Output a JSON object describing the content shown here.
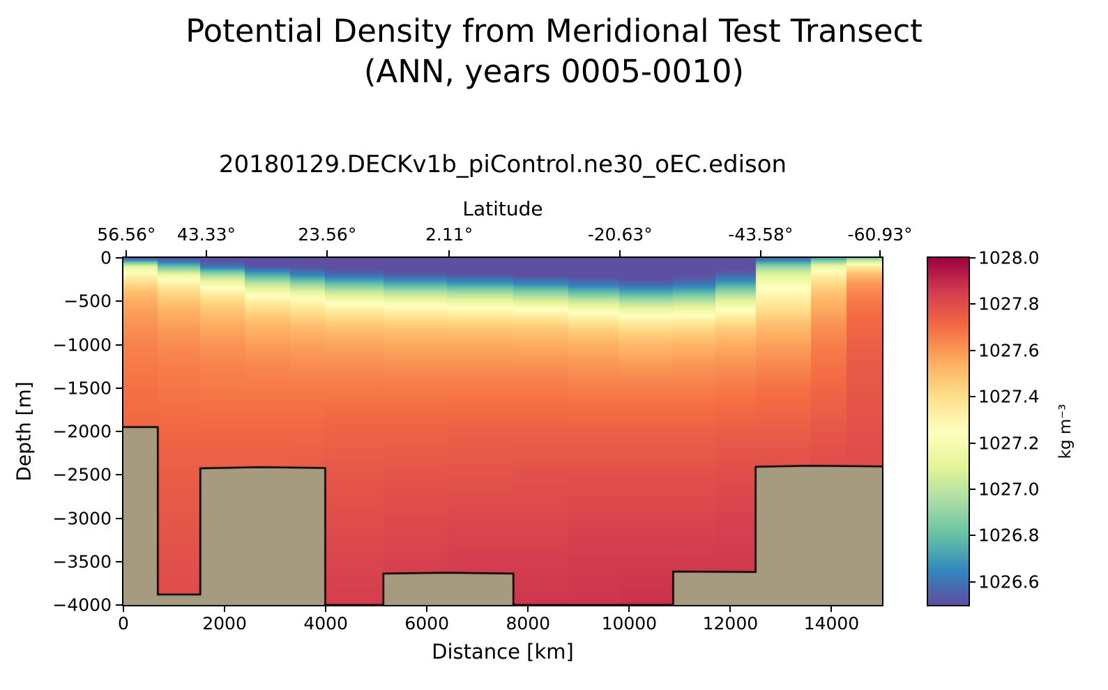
{
  "colors": {
    "background": "#ffffff",
    "text": "#000000",
    "axis": "#000000",
    "bathymetry_fill": "#a69b7f",
    "bathymetry_stroke": "#000000"
  },
  "figure": {
    "title_line1": "Potential Density from Meridional Test Transect",
    "title_line2": "(ANN, years 0005-0010)",
    "subtitle": "20180129.DECKv1b_piControl.ne30_oEC.edison"
  },
  "chart_data": {
    "type": "heatmap",
    "title": "Potential Density from Meridional Test Transect (ANN, years 0005-0010)",
    "subtitle": "20180129.DECKv1b_piControl.ne30_oEC.edison",
    "xlabel": "Distance [km]",
    "ylabel": "Depth [m]",
    "top_axis_label": "Latitude",
    "x_range_km": [
      0,
      15000
    ],
    "depth_range_m": [
      0,
      4000
    ],
    "x_ticks": {
      "values_km": [
        0,
        2000,
        4000,
        6000,
        8000,
        10000,
        12000,
        14000
      ],
      "labels": [
        "0",
        "2000",
        "4000",
        "6000",
        "8000",
        "10000",
        "12000",
        "14000"
      ]
    },
    "depth_ticks": {
      "values_m": [
        0,
        500,
        1000,
        1500,
        2000,
        2500,
        3000,
        3500,
        4000
      ],
      "labels": [
        "0",
        "−500",
        "−1000",
        "−1500",
        "−2000",
        "−2500",
        "−3000",
        "−3500",
        "−4000"
      ]
    },
    "latitude_ticks": [
      {
        "km": 60,
        "label": "56.56°"
      },
      {
        "km": 1640,
        "label": "43.33°"
      },
      {
        "km": 4030,
        "label": "23.56°"
      },
      {
        "km": 6440,
        "label": "2.11°"
      },
      {
        "km": 9820,
        "label": "-20.63°"
      },
      {
        "km": 12600,
        "label": "-43.58°"
      },
      {
        "km": 14960,
        "label": "-60.93°"
      }
    ],
    "colorbar": {
      "unit_label": "kg m⁻³",
      "vmin": 1026.5,
      "vmax": 1028.0,
      "tick_values": [
        1026.6,
        1026.8,
        1027.0,
        1027.2,
        1027.4,
        1027.6,
        1027.8,
        1028.0
      ],
      "tick_labels": [
        "1026.6",
        "1026.8",
        "1027.0",
        "1027.2",
        "1027.4",
        "1027.6",
        "1027.8",
        "1028.0"
      ],
      "colormap_stops": [
        [
          1026.5,
          "#5e4fa2"
        ],
        [
          1026.65,
          "#3288bd"
        ],
        [
          1026.8,
          "#66c2a5"
        ],
        [
          1026.95,
          "#abdda4"
        ],
        [
          1027.1,
          "#e6f598"
        ],
        [
          1027.25,
          "#ffffbf"
        ],
        [
          1027.4,
          "#fee08b"
        ],
        [
          1027.55,
          "#fdae61"
        ],
        [
          1027.7,
          "#f46d43"
        ],
        [
          1027.85,
          "#d53e4f"
        ],
        [
          1028.0,
          "#9e0142"
        ]
      ]
    },
    "grid": {
      "column_edges_km": [
        0,
        680,
        1520,
        2400,
        3300,
        3990,
        5140,
        6400,
        7710,
        8800,
        9800,
        10870,
        11700,
        12500,
        13600,
        14300,
        15000
      ],
      "depth_levels_m": [
        0,
        100,
        200,
        300,
        400,
        500,
        600,
        700,
        800,
        1000,
        1250,
        1500,
        2000,
        2500,
        3000,
        3500,
        4000
      ],
      "density_kg_m3": [
        [
          1026.5,
          1027.1,
          1027.3,
          1027.42,
          1027.5,
          1027.55,
          1027.58,
          1027.6,
          1027.62,
          1027.65,
          1027.67,
          1027.69,
          1027.72,
          1027.75,
          1027.77,
          1027.79,
          1027.8
        ],
        [
          1026.48,
          1026.8,
          1027.15,
          1027.32,
          1027.42,
          1027.48,
          1027.53,
          1027.56,
          1027.59,
          1027.63,
          1027.66,
          1027.68,
          1027.72,
          1027.75,
          1027.77,
          1027.79,
          1027.81
        ],
        [
          1026.46,
          1026.6,
          1026.95,
          1027.18,
          1027.32,
          1027.42,
          1027.48,
          1027.52,
          1027.56,
          1027.61,
          1027.65,
          1027.67,
          1027.72,
          1027.75,
          1027.78,
          1027.8,
          1027.81
        ],
        [
          1026.45,
          1026.52,
          1026.75,
          1027.0,
          1027.2,
          1027.33,
          1027.42,
          1027.48,
          1027.53,
          1027.59,
          1027.64,
          1027.67,
          1027.72,
          1027.75,
          1027.78,
          1027.8,
          1027.82
        ],
        [
          1026.45,
          1026.5,
          1026.65,
          1026.9,
          1027.12,
          1027.28,
          1027.38,
          1027.45,
          1027.51,
          1027.58,
          1027.63,
          1027.67,
          1027.72,
          1027.76,
          1027.79,
          1027.81,
          1027.83
        ],
        [
          1026.44,
          1026.48,
          1026.58,
          1026.8,
          1027.03,
          1027.2,
          1027.33,
          1027.42,
          1027.49,
          1027.57,
          1027.63,
          1027.67,
          1027.73,
          1027.77,
          1027.8,
          1027.83,
          1027.85
        ],
        [
          1026.44,
          1026.47,
          1026.54,
          1026.74,
          1026.97,
          1027.16,
          1027.3,
          1027.4,
          1027.48,
          1027.56,
          1027.62,
          1027.67,
          1027.73,
          1027.78,
          1027.81,
          1027.84,
          1027.86
        ],
        [
          1026.44,
          1026.46,
          1026.52,
          1026.7,
          1026.93,
          1027.13,
          1027.28,
          1027.39,
          1027.47,
          1027.56,
          1027.62,
          1027.67,
          1027.74,
          1027.78,
          1027.82,
          1027.85,
          1027.86
        ],
        [
          1026.44,
          1026.46,
          1026.5,
          1026.65,
          1026.88,
          1027.08,
          1027.25,
          1027.37,
          1027.46,
          1027.55,
          1027.62,
          1027.67,
          1027.74,
          1027.79,
          1027.82,
          1027.85,
          1027.87
        ],
        [
          1026.44,
          1026.45,
          1026.48,
          1026.6,
          1026.8,
          1027.02,
          1027.2,
          1027.33,
          1027.43,
          1027.54,
          1027.61,
          1027.66,
          1027.74,
          1027.79,
          1027.83,
          1027.86,
          1027.87
        ],
        [
          1026.44,
          1026.45,
          1026.47,
          1026.56,
          1026.74,
          1026.95,
          1027.14,
          1027.29,
          1027.4,
          1027.52,
          1027.6,
          1027.66,
          1027.74,
          1027.79,
          1027.83,
          1027.86,
          1027.88
        ],
        [
          1026.45,
          1026.46,
          1026.5,
          1026.6,
          1026.78,
          1026.98,
          1027.16,
          1027.3,
          1027.41,
          1027.53,
          1027.61,
          1027.66,
          1027.74,
          1027.79,
          1027.83,
          1027.86,
          1027.88
        ],
        [
          1026.45,
          1026.48,
          1026.56,
          1026.72,
          1026.92,
          1027.1,
          1027.25,
          1027.36,
          1027.45,
          1027.55,
          1027.62,
          1027.67,
          1027.75,
          1027.8,
          1027.84,
          1027.86,
          1027.88
        ],
        [
          1026.55,
          1026.9,
          1027.1,
          1027.2,
          1027.28,
          1027.34,
          1027.4,
          1027.46,
          1027.51,
          1027.58,
          1027.64,
          1027.69,
          1027.75,
          1027.8,
          1027.84,
          1027.87,
          1027.88
        ],
        [
          1026.7,
          1027.15,
          1027.32,
          1027.42,
          1027.48,
          1027.53,
          1027.56,
          1027.59,
          1027.62,
          1027.66,
          1027.69,
          1027.72,
          1027.77,
          1027.81,
          1027.84,
          1027.87,
          1027.88
        ],
        [
          1026.85,
          1027.35,
          1027.52,
          1027.6,
          1027.64,
          1027.67,
          1027.69,
          1027.71,
          1027.72,
          1027.74,
          1027.76,
          1027.77,
          1027.79,
          1027.81,
          1027.85,
          1027.87,
          1027.88
        ]
      ]
    },
    "bathymetry_floor": [
      [
        0,
        1950
      ],
      [
        680,
        1950
      ],
      [
        680,
        3880
      ],
      [
        1520,
        3880
      ],
      [
        1520,
        2425
      ],
      [
        2700,
        2412
      ],
      [
        3990,
        2422
      ],
      [
        3990,
        4000
      ],
      [
        5140,
        4000
      ],
      [
        5140,
        3638
      ],
      [
        6400,
        3628
      ],
      [
        7710,
        3638
      ],
      [
        7710,
        4000
      ],
      [
        10870,
        4000
      ],
      [
        10870,
        3615
      ],
      [
        12500,
        3620
      ],
      [
        12500,
        2408
      ],
      [
        13600,
        2396
      ],
      [
        15000,
        2404
      ]
    ]
  }
}
